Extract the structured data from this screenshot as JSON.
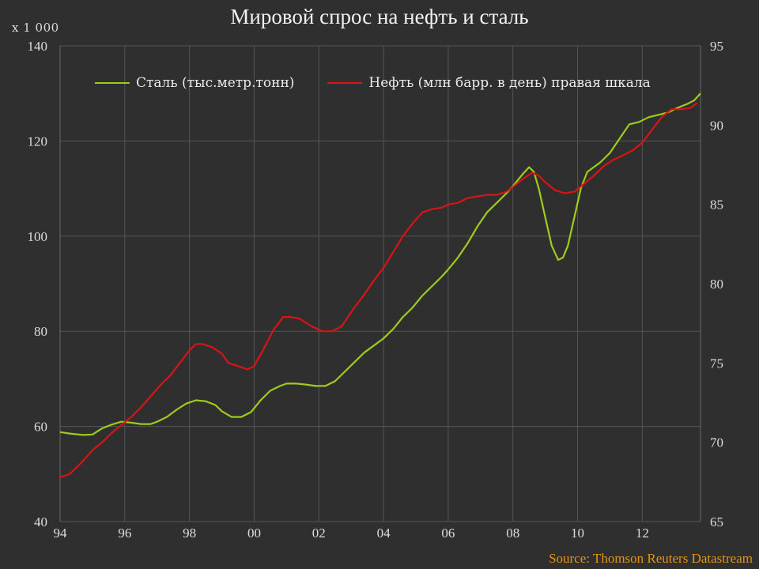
{
  "title": "Мировой спрос на нефть и сталь",
  "unit_label": "x 1 000",
  "source": "Source: Thomson Reuters Datastream",
  "colors": {
    "steel": "#9ecb1c",
    "oil": "#d81414",
    "background": "#2f2f2f",
    "grid": "#555555"
  },
  "chart_data": {
    "type": "line",
    "title": "Мировой спрос на нефть и сталь",
    "xlabel": "",
    "ylabel": "x 1 000",
    "x_tick_labels": [
      "94",
      "96",
      "98",
      "00",
      "02",
      "04",
      "06",
      "08",
      "10",
      "12"
    ],
    "x_tick_years": [
      1994,
      1996,
      1998,
      2000,
      2002,
      2004,
      2006,
      2008,
      2010,
      2012
    ],
    "xlim": [
      1994,
      2013.8
    ],
    "y_left": {
      "lim": [
        40,
        140
      ],
      "ticks": [
        40,
        60,
        80,
        100,
        120,
        140
      ]
    },
    "y_right": {
      "lim": [
        65,
        95
      ],
      "ticks": [
        65,
        70,
        75,
        80,
        85,
        90,
        95
      ]
    },
    "grid": true,
    "legend_position": "top-left",
    "series": [
      {
        "name": "Сталь (тыс.метр.тонн)",
        "axis": "left",
        "x": [
          1994.0,
          1994.3,
          1994.7,
          1995.0,
          1995.3,
          1995.6,
          1995.9,
          1996.2,
          1996.5,
          1996.8,
          1997.0,
          1997.3,
          1997.6,
          1997.9,
          1998.2,
          1998.5,
          1998.8,
          1999.0,
          1999.3,
          1999.6,
          1999.9,
          2000.2,
          2000.5,
          2000.8,
          2001.0,
          2001.3,
          2001.6,
          2001.9,
          2002.2,
          2002.5,
          2002.8,
          2003.1,
          2003.4,
          2003.7,
          2004.0,
          2004.3,
          2004.6,
          2004.9,
          2005.2,
          2005.5,
          2005.8,
          2006.0,
          2006.3,
          2006.6,
          2006.9,
          2007.2,
          2007.5,
          2007.8,
          2008.0,
          2008.3,
          2008.5,
          2008.65,
          2008.8,
          2009.0,
          2009.2,
          2009.4,
          2009.55,
          2009.7,
          2009.9,
          2010.1,
          2010.3,
          2010.5,
          2010.7,
          2011.0,
          2011.3,
          2011.6,
          2011.9,
          2012.2,
          2012.5,
          2012.8,
          2013.1,
          2013.4,
          2013.6,
          2013.8
        ],
        "values": [
          58.8,
          58.5,
          58.2,
          58.3,
          59.6,
          60.4,
          61.0,
          60.8,
          60.5,
          60.5,
          61.0,
          62.0,
          63.5,
          64.8,
          65.5,
          65.3,
          64.5,
          63.2,
          62.0,
          62.0,
          63.0,
          65.5,
          67.5,
          68.5,
          69.0,
          69.0,
          68.8,
          68.5,
          68.5,
          69.5,
          71.5,
          73.5,
          75.5,
          77.0,
          78.5,
          80.5,
          83.0,
          85.0,
          87.5,
          89.5,
          91.5,
          93.0,
          95.5,
          98.5,
          102.0,
          105.0,
          107.0,
          109.0,
          110.5,
          113.0,
          114.5,
          113.5,
          110.0,
          104.0,
          98.0,
          95.0,
          95.5,
          98.0,
          104.0,
          110.0,
          113.5,
          114.5,
          115.5,
          117.5,
          120.5,
          123.5,
          124.0,
          125.0,
          125.5,
          126.0,
          127.0,
          127.8,
          128.5,
          130.0
        ]
      },
      {
        "name": "Нефть (млн барр. в день) правая шкала",
        "axis": "right",
        "x": [
          1994.0,
          1994.3,
          1994.7,
          1995.0,
          1995.3,
          1995.6,
          1995.9,
          1996.2,
          1996.5,
          1996.8,
          1997.1,
          1997.4,
          1997.7,
          1998.0,
          1998.2,
          1998.4,
          1998.7,
          1999.0,
          1999.2,
          1999.5,
          1999.8,
          2000.0,
          2000.3,
          2000.6,
          2000.9,
          2001.1,
          2001.4,
          2001.7,
          2001.9,
          2002.1,
          2002.4,
          2002.7,
          2002.9,
          2003.1,
          2003.4,
          2003.7,
          2004.0,
          2004.3,
          2004.6,
          2004.9,
          2005.2,
          2005.5,
          2005.8,
          2006.0,
          2006.3,
          2006.6,
          2006.9,
          2007.2,
          2007.5,
          2007.8,
          2008.0,
          2008.3,
          2008.6,
          2008.8,
          2009.0,
          2009.3,
          2009.6,
          2009.9,
          2010.2,
          2010.5,
          2010.8,
          2011.1,
          2011.4,
          2011.7,
          2012.0,
          2012.3,
          2012.6,
          2012.9,
          2013.2,
          2013.5,
          2013.7
        ],
        "values": [
          67.8,
          68.0,
          68.8,
          69.5,
          70.0,
          70.6,
          71.1,
          71.6,
          72.2,
          72.9,
          73.6,
          74.2,
          75.0,
          75.8,
          76.2,
          76.2,
          76.0,
          75.6,
          75.0,
          74.8,
          74.6,
          74.8,
          75.9,
          77.1,
          77.9,
          77.9,
          77.8,
          77.4,
          77.2,
          77.0,
          77.0,
          77.3,
          77.9,
          78.5,
          79.3,
          80.2,
          81.0,
          82.0,
          83.0,
          83.8,
          84.5,
          84.7,
          84.8,
          85.0,
          85.1,
          85.4,
          85.5,
          85.6,
          85.6,
          85.8,
          86.1,
          86.6,
          87.0,
          86.8,
          86.4,
          85.9,
          85.7,
          85.8,
          86.3,
          86.8,
          87.4,
          87.8,
          88.1,
          88.4,
          88.9,
          89.7,
          90.5,
          91.0,
          91.0,
          91.1,
          91.4
        ]
      }
    ]
  }
}
